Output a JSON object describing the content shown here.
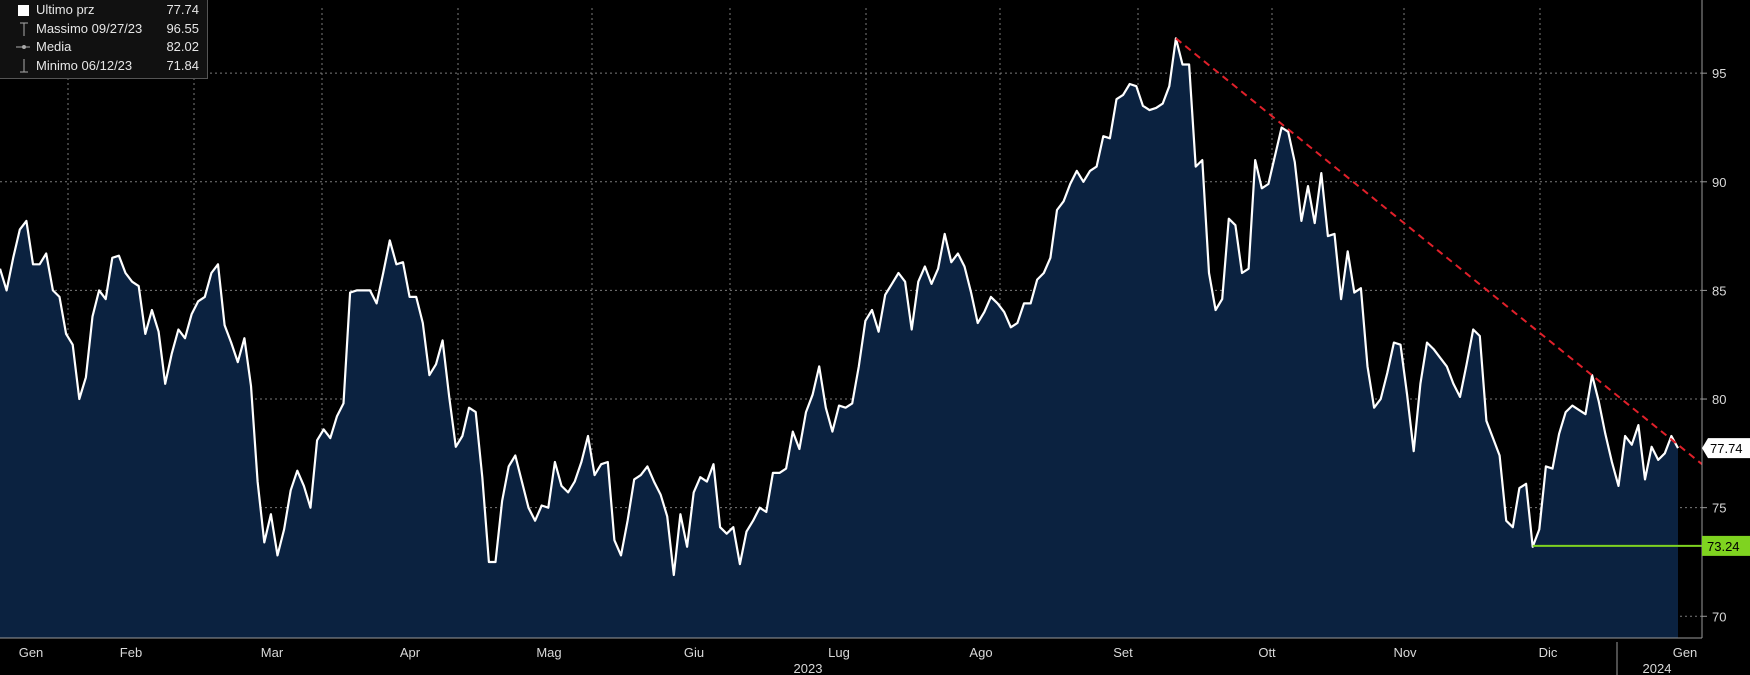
{
  "legend": {
    "items": [
      {
        "label": "Ultimo prz",
        "date": "",
        "value": "77.74",
        "icon": "square-swatch-icon"
      },
      {
        "label": "Massimo",
        "date": "09/27/23",
        "value": "96.55",
        "icon": "max-marker-icon"
      },
      {
        "label": "Media",
        "date": "",
        "value": "82.02",
        "icon": "avg-marker-icon"
      },
      {
        "label": "Minimo",
        "date": "06/12/23",
        "value": "71.84",
        "icon": "min-marker-icon"
      }
    ]
  },
  "colors": {
    "background": "#000000",
    "line": "#ffffff",
    "area_fill": "#0b2240",
    "trendline": "#e0202a",
    "support": "#7fd320",
    "grid": "#7a7a7a"
  },
  "chart_data": {
    "type": "area",
    "ylim": [
      69,
      98
    ],
    "y_ticks": [
      70,
      75,
      80,
      85,
      90,
      95
    ],
    "month_labels": [
      "Gen",
      "Feb",
      "Mar",
      "Apr",
      "Mag",
      "Giu",
      "Lug",
      "Ago",
      "Set",
      "Ott",
      "Nov",
      "Dic",
      "Gen"
    ],
    "year_labels": [
      "2023",
      "2024"
    ],
    "grid": true,
    "series": [
      {
        "values": [
          86.0,
          85.0,
          86.5,
          87.8,
          88.2,
          86.2,
          86.2,
          86.7,
          85.0,
          84.7,
          83.0,
          82.5,
          80.0,
          81.0,
          83.8,
          85.0,
          84.6,
          86.5,
          86.6,
          85.8,
          85.4,
          85.2,
          83.0,
          84.1,
          83.1,
          80.7,
          82.1,
          83.2,
          82.8,
          83.9,
          84.5,
          84.7,
          85.8,
          86.2,
          83.4,
          82.6,
          81.7,
          82.8,
          80.6,
          76.2,
          73.4,
          74.7,
          72.8,
          74.0,
          75.8,
          76.7,
          76.0,
          75.0,
          78.1,
          78.6,
          78.2,
          79.2,
          79.8,
          84.9,
          85.0,
          85.0,
          85.0,
          84.4,
          85.8,
          87.3,
          86.2,
          86.3,
          84.7,
          84.7,
          83.5,
          81.1,
          81.6,
          82.7,
          80.1,
          77.8,
          78.3,
          79.6,
          79.4,
          76.4,
          72.5,
          72.5,
          75.3,
          76.9,
          77.4,
          76.2,
          75.0,
          74.4,
          75.1,
          75.0,
          77.1,
          76.0,
          75.7,
          76.2,
          77.1,
          78.3,
          76.5,
          77.0,
          77.1,
          73.5,
          72.8,
          74.4,
          76.3,
          76.5,
          76.9,
          76.2,
          75.6,
          74.6,
          71.9,
          74.7,
          73.2,
          75.7,
          76.4,
          76.2,
          77.0,
          74.1,
          73.8,
          74.1,
          72.4,
          73.9,
          74.4,
          75.0,
          74.8,
          76.6,
          76.6,
          76.8,
          78.5,
          77.7,
          79.4,
          80.2,
          81.5,
          79.6,
          78.5,
          79.7,
          79.6,
          79.8,
          81.5,
          83.6,
          84.1,
          83.1,
          84.8,
          85.3,
          85.8,
          85.4,
          83.2,
          85.4,
          86.1,
          85.3,
          86.0,
          87.6,
          86.3,
          86.7,
          86.1,
          84.9,
          83.5,
          84.0,
          84.7,
          84.4,
          84.0,
          83.3,
          83.5,
          84.4,
          84.4,
          85.5,
          85.8,
          86.5,
          88.7,
          89.1,
          89.9,
          90.5,
          90.0,
          90.5,
          90.7,
          92.1,
          92.0,
          93.8,
          94.0,
          94.5,
          94.4,
          93.5,
          93.3,
          93.4,
          93.6,
          94.4,
          96.6,
          95.4,
          95.4,
          90.7,
          91.0,
          85.8,
          84.1,
          84.6,
          88.3,
          88.0,
          85.8,
          86.0,
          91.0,
          89.7,
          89.9,
          91.2,
          92.5,
          92.3,
          90.9,
          88.2,
          89.8,
          88.1,
          90.4,
          87.5,
          87.6,
          84.6,
          86.8,
          84.9,
          85.1,
          81.5,
          79.6,
          80.0,
          81.2,
          82.6,
          82.5,
          80.2,
          77.6,
          80.7,
          82.6,
          82.3,
          81.9,
          81.5,
          80.7,
          80.1,
          81.6,
          83.2,
          82.9,
          79.0,
          78.2,
          77.4,
          74.4,
          74.1,
          75.9,
          76.1,
          73.2,
          74.0,
          76.9,
          76.8,
          78.4,
          79.4,
          79.7,
          79.5,
          79.3,
          81.1,
          79.9,
          78.4,
          77.1,
          76.0,
          78.3,
          77.9,
          78.8,
          76.3,
          77.8,
          77.2,
          77.5,
          78.3,
          77.74
        ],
        "last_value": 77.74,
        "last_label": "77.74"
      }
    ],
    "annotations": {
      "trendline": {
        "from_value": 96.6,
        "to_value": 77.0
      },
      "support": {
        "value": 73.24,
        "label": "73.24"
      }
    }
  }
}
